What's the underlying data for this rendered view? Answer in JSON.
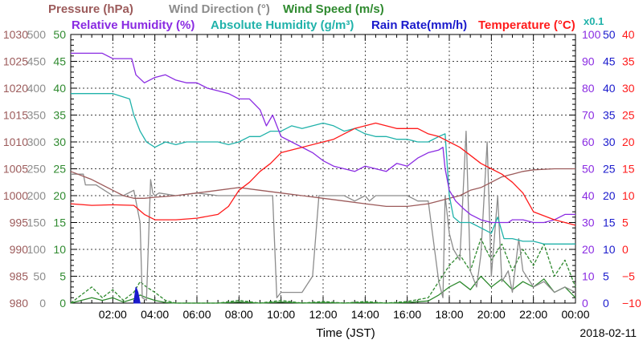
{
  "chart_data": {
    "type": "line",
    "date": "2018-02-11",
    "xlabel": "Time (JST)",
    "xlim": [
      0,
      24
    ],
    "x_ticks": [
      "02:00",
      "04:00",
      "06:00",
      "08:00",
      "10:00",
      "12:00",
      "14:00",
      "16:00",
      "18:00",
      "20:00",
      "22:00",
      "00:00"
    ],
    "legend": [
      {
        "label": "Pressure (hPa)",
        "color": "#9c5b5b"
      },
      {
        "label": "Wind Direction (°)",
        "color": "#8c8c8c"
      },
      {
        "label": "Wind Speed (m/s)",
        "color": "#2f8a2f"
      },
      {
        "label": "Relative Humidity (%)",
        "color": "#8a2be2"
      },
      {
        "label": "Absolute Humidity (g/m³)",
        "color": "#20b2aa"
      },
      {
        "label": "Rain Rate(mm/h)",
        "color": "#1a1acc"
      },
      {
        "label": "Temperature (°C)",
        "color": "#ff1a1a"
      }
    ],
    "x0_1_label": "x0.1",
    "axes": [
      {
        "name": "Pressure",
        "ylim": [
          980,
          1030
        ],
        "ticks": [
          "980",
          "985",
          "990",
          "995",
          "1000",
          "1005",
          "1010",
          "1015",
          "1020",
          "1025",
          "1030"
        ],
        "color": "#9c5b5b",
        "side": "left"
      },
      {
        "name": "Wind Direction",
        "ylim": [
          0,
          500
        ],
        "ticks": [
          "0",
          "50",
          "100",
          "150",
          "200",
          "250",
          "300",
          "350",
          "400",
          "450",
          "500"
        ],
        "color": "#8c8c8c",
        "side": "left"
      },
      {
        "name": "Wind Speed",
        "ylim": [
          0,
          50
        ],
        "ticks": [
          "0",
          "5",
          "10",
          "15",
          "20",
          "25",
          "30",
          "35",
          "40",
          "45",
          "50"
        ],
        "color": "#2f8a2f",
        "side": "left"
      },
      {
        "name": "Relative Humidity",
        "ylim": [
          0,
          100
        ],
        "ticks": [
          "0",
          "10",
          "20",
          "30",
          "40",
          "50",
          "60",
          "70",
          "80",
          "90",
          "100"
        ],
        "color": "#8a2be2",
        "side": "right"
      },
      {
        "name": "Rain Rate",
        "ylim": [
          0,
          50
        ],
        "ticks": [
          "0",
          "5",
          "10",
          "15",
          "20",
          "25",
          "30",
          "35",
          "40",
          "45",
          "50"
        ],
        "color": "#1a1acc",
        "side": "right"
      },
      {
        "name": "Temperature",
        "ylim": [
          -10,
          40
        ],
        "ticks": [
          "−10",
          "−5",
          "0",
          "5",
          "10",
          "15",
          "20",
          "25",
          "30",
          "35",
          "40"
        ],
        "color": "#ff1a1a",
        "side": "right"
      }
    ],
    "series": [
      {
        "name": "Relative Humidity (%)",
        "axis": "Relative Humidity",
        "color": "#8a2be2",
        "x": [
          0,
          1.5,
          2,
          2.9,
          3.1,
          3.5,
          4,
          4.5,
          5,
          5.5,
          6,
          6.5,
          7,
          7.5,
          8,
          8.5,
          9,
          9.3,
          9.6,
          10,
          10.5,
          11,
          11.5,
          12,
          12.5,
          13,
          13.5,
          14,
          14.5,
          15,
          15.5,
          16,
          16.5,
          17,
          17.5,
          17.7,
          17.8,
          18,
          18.3,
          18.7,
          19,
          19.5,
          20,
          20.5,
          20.8,
          21,
          21.5,
          22,
          22.5,
          23,
          23.5,
          24
        ],
        "y": [
          93,
          93,
          91,
          91,
          85,
          82,
          84,
          85,
          83,
          82,
          82,
          80,
          79,
          78,
          76,
          76,
          72,
          66,
          70,
          62,
          60,
          58,
          56,
          53,
          51,
          50,
          49,
          51,
          50,
          49,
          52,
          51,
          54,
          56,
          57,
          58,
          50,
          42,
          38,
          35,
          33,
          31,
          30,
          30,
          30,
          31,
          31,
          30,
          30,
          31,
          33,
          33
        ]
      },
      {
        "name": "Absolute Humidity (g/m³)",
        "axis": "Rain Rate",
        "color": "#20b2aa",
        "x": [
          0,
          1.5,
          2,
          2.8,
          3,
          3.3,
          3.6,
          4,
          4.5,
          5,
          5.5,
          6,
          6.5,
          7,
          7.5,
          8,
          8.5,
          9,
          9.5,
          10,
          10.5,
          11,
          11.5,
          12,
          12.5,
          13,
          13.5,
          14,
          14.5,
          15,
          15.5,
          16,
          16.5,
          17,
          17.5,
          17.8,
          18,
          18.2,
          18.5,
          19,
          19.5,
          20,
          20.3,
          20.6,
          21,
          21.5,
          22,
          22.5,
          23,
          23.5,
          24
        ],
        "y": [
          39,
          39,
          39,
          38,
          35,
          32,
          30,
          29,
          30,
          29.5,
          30,
          30,
          30,
          30,
          29.5,
          30,
          31,
          31,
          32,
          32,
          33,
          32.5,
          33,
          33.5,
          33,
          32,
          32.5,
          31.5,
          31,
          31,
          30.5,
          30.5,
          30,
          30,
          31,
          31.5,
          20,
          16,
          15,
          15,
          14,
          13,
          16,
          12,
          12,
          11.5,
          11.5,
          11,
          11,
          11,
          11
        ]
      },
      {
        "name": "Temperature (°C)",
        "axis": "Temperature",
        "color": "#ff1a1a",
        "x": [
          0,
          1,
          2,
          3,
          3.5,
          4,
          5,
          6,
          7,
          7.5,
          8,
          8.5,
          9,
          9.5,
          10,
          11,
          12,
          12.5,
          13,
          13.5,
          14,
          14.5,
          15,
          15.5,
          16,
          16.5,
          17,
          17.5,
          18,
          18.5,
          19,
          19.5,
          20,
          20.5,
          21,
          21.5,
          22,
          23,
          24
        ],
        "y": [
          8.5,
          8.2,
          8.3,
          8.2,
          6.5,
          5.5,
          5.5,
          5.8,
          6.5,
          8,
          11,
          12.5,
          14.5,
          16,
          18,
          19,
          20,
          20.5,
          21.5,
          22.5,
          23,
          23.5,
          23,
          22.5,
          22.5,
          22.5,
          21.5,
          21,
          20,
          19,
          17.5,
          16,
          15,
          14,
          12.5,
          10.5,
          7,
          5.5,
          4.5
        ]
      },
      {
        "name": "Pressure (hPa)",
        "axis": "Pressure",
        "color": "#9c5b5b",
        "x": [
          0,
          1,
          2,
          2.5,
          3,
          3.5,
          4,
          5,
          6,
          7,
          8,
          9,
          10,
          11,
          12,
          13,
          14,
          15,
          16,
          17,
          17.5,
          18,
          18.5,
          19,
          19.5,
          20,
          20.5,
          21,
          21.5,
          22,
          23,
          24
        ],
        "y": [
          1004.5,
          1003,
          1001,
          1000,
          999.5,
          999.5,
          999.7,
          1000,
          1000.5,
          1001,
          1001.5,
          1001,
          1000.5,
          1000,
          999.5,
          999,
          998.5,
          998,
          998,
          998.5,
          999,
          999.5,
          1000,
          1001,
          1001.5,
          1002.5,
          1003.5,
          1004,
          1004.5,
          1004.8,
          1005,
          1005
        ]
      },
      {
        "name": "Wind Direction (°)",
        "axis": "Wind Direction",
        "color": "#8c8c8c",
        "x": [
          0,
          0.6,
          0.7,
          1.2,
          1.6,
          2,
          2.5,
          3,
          3.3,
          3.4,
          3.6,
          3.8,
          3.9,
          4,
          4.2,
          5,
          6,
          7,
          8,
          9,
          9.6,
          9.8,
          10,
          11,
          11.5,
          11.8,
          12,
          13,
          13.5,
          14,
          14.2,
          14.5,
          15,
          16,
          16.5,
          17,
          17.5,
          17.7,
          17.8,
          18,
          18.2,
          18.5,
          18.8,
          19,
          19.3,
          19.5,
          19.8,
          20,
          20.3,
          20.5,
          20.8,
          21,
          21.3,
          21.5,
          22,
          22.5,
          23,
          23.5,
          24
        ],
        "y": [
          240,
          240,
          220,
          220,
          210,
          200,
          200,
          210,
          150,
          10,
          5,
          230,
          205,
          200,
          205,
          200,
          205,
          200,
          200,
          200,
          200,
          10,
          20,
          20,
          50,
          200,
          200,
          200,
          190,
          200,
          190,
          200,
          200,
          200,
          190,
          190,
          40,
          10,
          200,
          130,
          100,
          80,
          320,
          60,
          30,
          90,
          300,
          50,
          200,
          40,
          60,
          20,
          120,
          60,
          30,
          40,
          20,
          30,
          20
        ]
      },
      {
        "name": "Wind Speed (m/s)",
        "axis": "Wind Speed",
        "color": "#2f8a2f",
        "style": "dashed",
        "x": [
          0,
          0.5,
          1,
          1.5,
          2,
          2.5,
          3,
          3.3,
          3.6,
          4,
          4.5,
          5,
          6,
          7,
          8,
          9,
          10,
          11,
          12,
          13,
          14,
          15,
          16,
          17,
          17.5,
          18,
          18.5,
          19,
          19.5,
          20,
          20.5,
          21,
          21.5,
          22,
          22.5,
          23,
          23.5,
          24
        ],
        "y": [
          0,
          1.5,
          3,
          1,
          2.5,
          0.5,
          2,
          4,
          3,
          2,
          0.5,
          0,
          0,
          0,
          0.5,
          0,
          0.5,
          0,
          0.3,
          0,
          0.3,
          0,
          0.3,
          1,
          4,
          7,
          9,
          6,
          12,
          8,
          11,
          6,
          10,
          7,
          11,
          5,
          8,
          3
        ]
      },
      {
        "name": "Wind Speed (m/s)",
        "axis": "Wind Speed",
        "color": "#2f8a2f",
        "style": "solid",
        "x": [
          0,
          0.5,
          1,
          1.5,
          2,
          2.5,
          3,
          3.3,
          3.6,
          4,
          4.5,
          5,
          6,
          7,
          8,
          9,
          10,
          11,
          12,
          13,
          14,
          15,
          16,
          17,
          17.5,
          18,
          18.5,
          19,
          19.5,
          20,
          20.5,
          21,
          21.5,
          22,
          22.5,
          23,
          23.5,
          24
        ],
        "y": [
          0,
          0.5,
          1,
          0.5,
          1,
          0.2,
          0.8,
          1.5,
          1,
          0.5,
          0.1,
          0,
          0,
          0,
          0.2,
          0,
          0.2,
          0,
          0.1,
          0,
          0.1,
          0,
          0.1,
          0.4,
          1.5,
          3,
          4,
          2.5,
          5,
          3,
          4.5,
          2.5,
          4,
          3,
          4.5,
          2,
          3,
          1
        ]
      },
      {
        "name": "Rain Rate(mm/h)",
        "axis": "Rain Rate",
        "color": "#1a1acc",
        "x": [
          3.0,
          3.1,
          3.2,
          3.3
        ],
        "y": [
          0,
          3,
          2,
          0
        ]
      }
    ]
  }
}
